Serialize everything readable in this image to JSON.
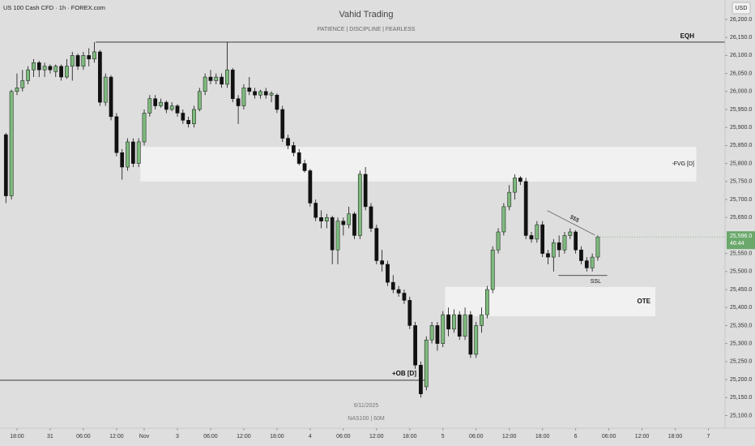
{
  "header": {
    "symbol": "US 100 Cash CFD · 1h · FOREX.com",
    "title": "Vahid Trading",
    "subtitle": "PATIENCE  |  DISCIPLINE  |  FEARLESS",
    "currency": "USD"
  },
  "footer": {
    "date": "6/11/2025",
    "note": "NAS100 | 60M"
  },
  "chart_data": {
    "type": "candlestick",
    "colors": {
      "up": "#7dba7d",
      "down": "#111111"
    },
    "open": [
      25880,
      25710,
      26000,
      26010,
      26030,
      26060,
      26080,
      26060,
      26070,
      26055,
      26070,
      26040,
      26070,
      26100,
      26070,
      26100,
      26090,
      26110,
      25970,
      26040,
      25930,
      25830,
      25790,
      25860,
      25800,
      25860,
      25940,
      25980,
      25960,
      25970,
      25950,
      25960,
      25940,
      25920,
      25910,
      25950,
      26000,
      26040,
      26030,
      26040,
      26020,
      26060,
      25980,
      25960,
      26010,
      26000,
      25990,
      26000,
      25990,
      25990,
      25950,
      25870,
      25850,
      25830,
      25800,
      25780,
      25690,
      25650,
      25640,
      25650,
      25560,
      25640,
      25630,
      25660,
      25600,
      25770,
      25680,
      25620,
      25530,
      25520,
      25470,
      25450,
      25440,
      25420,
      25350,
      25240,
      25180,
      25310,
      25350,
      25300,
      25380,
      25340,
      25380,
      25320,
      25380,
      25270,
      25350,
      25380,
      25450,
      25560,
      25610,
      25680,
      25720,
      25760,
      25750,
      25600,
      25590,
      25630,
      25550,
      25540,
      25580,
      25560,
      25600,
      25610,
      25560,
      25530,
      25510,
      25540
    ],
    "high": [
      25885,
      26005,
      26050,
      26060,
      26070,
      26090,
      26085,
      26080,
      26075,
      26075,
      26075,
      26090,
      26110,
      26105,
      26110,
      26120,
      26137,
      26115,
      26050,
      26045,
      25940,
      25840,
      25870,
      25870,
      25870,
      25950,
      25990,
      25990,
      25980,
      25975,
      25970,
      25965,
      25950,
      25930,
      25960,
      26010,
      26050,
      26060,
      26050,
      26050,
      26137,
      26065,
      25990,
      26020,
      26040,
      26010,
      26005,
      26010,
      26000,
      25995,
      25960,
      25880,
      25860,
      25840,
      25810,
      25785,
      25700,
      25670,
      25660,
      25655,
      25650,
      25650,
      25680,
      25665,
      25780,
      25790,
      25690,
      25630,
      25560,
      25530,
      25490,
      25460,
      25450,
      25430,
      25360,
      25250,
      25320,
      25360,
      25360,
      25390,
      25400,
      25395,
      25390,
      25400,
      25390,
      25360,
      25400,
      25460,
      25570,
      25620,
      25690,
      25740,
      25770,
      25765,
      25760,
      25610,
      25640,
      25640,
      25560,
      25590,
      25600,
      25610,
      25620,
      25615,
      25570,
      25540,
      25550,
      25600
    ],
    "low": [
      25690,
      25700,
      25990,
      26000,
      26020,
      26040,
      26040,
      26040,
      26050,
      26040,
      26030,
      26035,
      26030,
      26060,
      26060,
      26070,
      26080,
      25960,
      25960,
      25920,
      25820,
      25755,
      25780,
      25790,
      25790,
      25850,
      25930,
      25950,
      25955,
      25940,
      25945,
      25930,
      25910,
      25900,
      25900,
      25945,
      25990,
      26020,
      26020,
      26010,
      26010,
      25970,
      25910,
      25950,
      25990,
      25980,
      25980,
      25980,
      25970,
      25940,
      25860,
      25840,
      25820,
      25795,
      25775,
      25680,
      25640,
      25620,
      25620,
      25520,
      25520,
      25600,
      25620,
      25590,
      25590,
      25670,
      25610,
      25520,
      25500,
      25460,
      25440,
      25430,
      25410,
      25340,
      25230,
      25150,
      25170,
      25300,
      25280,
      25290,
      25320,
      25330,
      25310,
      25310,
      25260,
      25260,
      25330,
      25370,
      25440,
      25550,
      25600,
      25670,
      25700,
      25740,
      25590,
      25580,
      25580,
      25540,
      25520,
      25500,
      25540,
      25550,
      25590,
      25550,
      25520,
      25500,
      25500,
      25530
    ],
    "close": [
      25710,
      26000,
      26010,
      26030,
      26060,
      26080,
      26060,
      26070,
      26060,
      26070,
      26040,
      26070,
      26100,
      26070,
      26100,
      26090,
      26110,
      25970,
      26040,
      25930,
      25830,
      25790,
      25860,
      25800,
      25860,
      25940,
      25980,
      25960,
      25970,
      25950,
      25960,
      25940,
      25920,
      25910,
      25950,
      26000,
      26040,
      26030,
      26040,
      26020,
      26060,
      25980,
      25960,
      26010,
      26000,
      25990,
      26000,
      25990,
      25995,
      25950,
      25870,
      25850,
      25830,
      25800,
      25780,
      25690,
      25650,
      25640,
      25650,
      25560,
      25640,
      25630,
      25660,
      25600,
      25770,
      25680,
      25620,
      25530,
      25520,
      25470,
      25450,
      25440,
      25420,
      25350,
      25240,
      25160,
      25310,
      25350,
      25300,
      25380,
      25340,
      25380,
      25320,
      25380,
      25270,
      25350,
      25380,
      25450,
      25560,
      25610,
      25680,
      25720,
      25760,
      25750,
      25600,
      25590,
      25630,
      25550,
      25540,
      25580,
      25560,
      25600,
      25610,
      25560,
      25530,
      25510,
      25540,
      25596
    ],
    "xlim": [
      -1.07,
      130
    ],
    "xticks": [
      {
        "value": 2,
        "label": "18:00"
      },
      {
        "value": 8,
        "label": "31"
      },
      {
        "value": 14,
        "label": "06:00"
      },
      {
        "value": 20,
        "label": "12:00"
      },
      {
        "value": 25,
        "label": "Nov"
      },
      {
        "value": 31,
        "label": "3"
      },
      {
        "value": 37,
        "label": "06:00"
      },
      {
        "value": 43,
        "label": "12:00"
      },
      {
        "value": 49,
        "label": "18:00"
      },
      {
        "value": 55,
        "label": "4"
      },
      {
        "value": 61,
        "label": "06:00"
      },
      {
        "value": 67,
        "label": "12:00"
      },
      {
        "value": 73,
        "label": "18:00"
      },
      {
        "value": 79,
        "label": "5"
      },
      {
        "value": 85,
        "label": "06:00"
      },
      {
        "value": 91,
        "label": "12:00"
      },
      {
        "value": 97,
        "label": "18:00"
      },
      {
        "value": 103,
        "label": "6"
      },
      {
        "value": 109,
        "label": "06:00"
      },
      {
        "value": 115,
        "label": "12:00"
      },
      {
        "value": 121,
        "label": "18:00"
      },
      {
        "value": 127,
        "label": "7"
      }
    ],
    "ylim": [
      25065,
      26254
    ],
    "yticks": [
      {
        "value": 25100,
        "label": "25,100.0"
      },
      {
        "value": 25150,
        "label": "25,150.0"
      },
      {
        "value": 25200,
        "label": "25,200.0"
      },
      {
        "value": 25250,
        "label": "25,250.0"
      },
      {
        "value": 25300,
        "label": "25,300.0"
      },
      {
        "value": 25350,
        "label": "25,350.0"
      },
      {
        "value": 25400,
        "label": "25,400.0"
      },
      {
        "value": 25450,
        "label": "25,450.0"
      },
      {
        "value": 25500,
        "label": "25,500.0"
      },
      {
        "value": 25550,
        "label": "25,550.0"
      },
      {
        "value": 25650,
        "label": "25,650.0"
      },
      {
        "value": 25700,
        "label": "25,700.0"
      },
      {
        "value": 25750,
        "label": "25,750.0"
      },
      {
        "value": 25800,
        "label": "25,800.0"
      },
      {
        "value": 25850,
        "label": "25,850.0"
      },
      {
        "value": 25900,
        "label": "25,900.0"
      },
      {
        "value": 25950,
        "label": "25,950.0"
      },
      {
        "value": 26000,
        "label": "26,000.0"
      },
      {
        "value": 26050,
        "label": "26,050.0"
      },
      {
        "value": 26100,
        "label": "26,100.0"
      },
      {
        "value": 26150,
        "label": "26,150.0"
      },
      {
        "value": 26200,
        "label": "26,200.0"
      }
    ],
    "last_price": {
      "value": 25596,
      "label": "25,596.0",
      "countdown": "46:44"
    },
    "levels": [
      {
        "label": "EQH",
        "value": 26137,
        "from": 16.2
      },
      {
        "label": "+OB [D]",
        "value": 25198,
        "from": -1.07,
        "to": 75.8
      },
      {
        "label": "SSL",
        "value": 25489,
        "from": 99.9,
        "to": 108.7
      }
    ],
    "zones": [
      {
        "label": "-FVG [D]",
        "range": [
          25750,
          25846
        ],
        "from": 24.3,
        "to": 124.8
      },
      {
        "label": "OTE",
        "range": [
          25376,
          25457
        ],
        "from": 79.4,
        "to": 117.4
      }
    ],
    "trendline": {
      "label": "$$$",
      "x": [
        97.9,
        106.5
      ],
      "y": [
        25669,
        25601
      ]
    }
  }
}
